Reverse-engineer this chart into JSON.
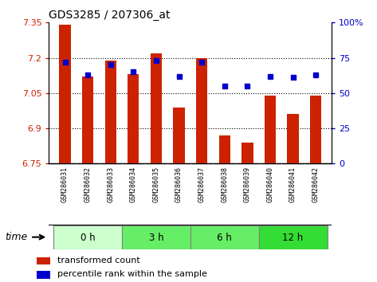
{
  "title": "GDS3285 / 207306_at",
  "samples": [
    "GSM286031",
    "GSM286032",
    "GSM286033",
    "GSM286034",
    "GSM286035",
    "GSM286036",
    "GSM286037",
    "GSM286038",
    "GSM286039",
    "GSM286040",
    "GSM286041",
    "GSM286042"
  ],
  "bar_values": [
    7.34,
    7.12,
    7.19,
    7.13,
    7.22,
    6.99,
    7.2,
    6.87,
    6.84,
    7.04,
    6.96,
    7.04
  ],
  "percentile_values": [
    72,
    63,
    70,
    65,
    73,
    62,
    72,
    55,
    55,
    62,
    61,
    63
  ],
  "bar_bottom": 6.75,
  "ylim_left": [
    6.75,
    7.35
  ],
  "ylim_right": [
    0,
    100
  ],
  "yticks_left": [
    6.75,
    6.9,
    7.05,
    7.2,
    7.35
  ],
  "yticks_right": [
    0,
    25,
    50,
    75,
    100
  ],
  "ytick_labels_left": [
    "6.75",
    "6.9",
    "7.05",
    "7.2",
    "7.35"
  ],
  "ytick_labels_right": [
    "0",
    "25",
    "50",
    "75",
    "100%"
  ],
  "groups": [
    {
      "label": "0 h",
      "start": 0,
      "end": 3,
      "color": "#ccffcc"
    },
    {
      "label": "3 h",
      "start": 3,
      "end": 6,
      "color": "#66ee66"
    },
    {
      "label": "6 h",
      "start": 6,
      "end": 9,
      "color": "#66ee66"
    },
    {
      "label": "12 h",
      "start": 9,
      "end": 12,
      "color": "#33dd33"
    }
  ],
  "bar_color": "#cc2200",
  "dot_color": "#0000cc",
  "time_label": "time",
  "legend_bar_label": "transformed count",
  "legend_dot_label": "percentile rank within the sample",
  "background_color": "#ffffff",
  "tick_color_left": "#cc2200",
  "tick_color_right": "#0000cc",
  "sample_bg_color": "#cccccc",
  "grid_yticks": [
    6.9,
    7.05,
    7.2
  ]
}
